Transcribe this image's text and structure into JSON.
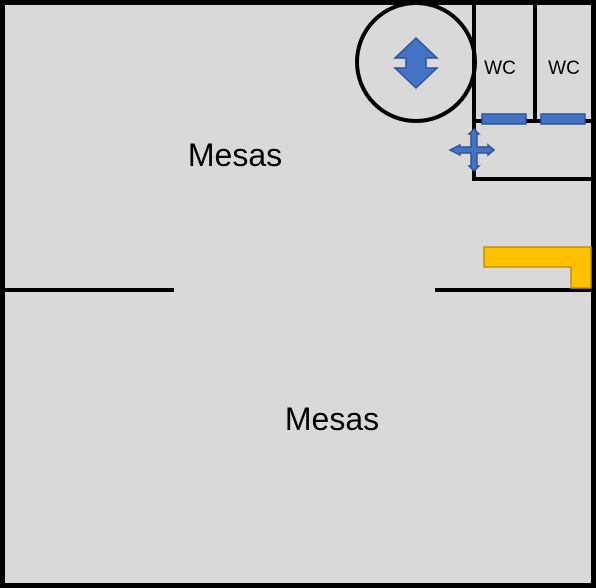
{
  "plan": {
    "rooms": [
      {
        "id": "upper-area",
        "label": "Mesas"
      },
      {
        "id": "lower-area",
        "label": "Mesas"
      }
    ],
    "restrooms": [
      {
        "id": "wc-left",
        "label": "WC"
      },
      {
        "id": "wc-right",
        "label": "WC"
      }
    ],
    "icons": {
      "stair_circle": "up-down-arrow-icon",
      "crossroad": "four-way-arrow-icon",
      "counter": "counter-shape"
    },
    "colors": {
      "floor": "#d9d9d9",
      "wall": "#000000",
      "door_marker": "#4472c4",
      "arrow_fill": "#4472c4",
      "arrow_stroke": "#2f5597",
      "counter_fill": "#ffc000",
      "counter_stroke": "#c09000"
    }
  }
}
